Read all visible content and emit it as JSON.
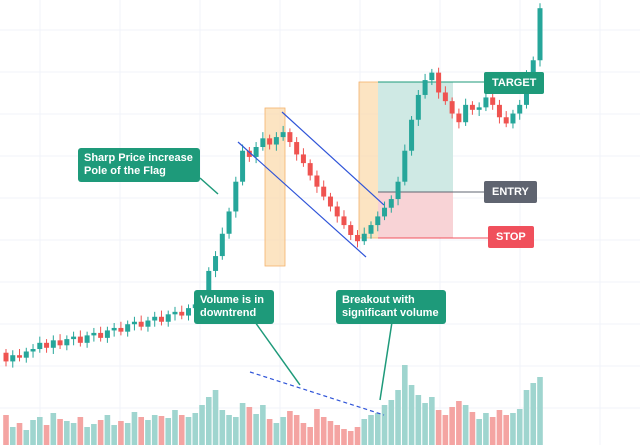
{
  "colors": {
    "up": "#26a69a",
    "down": "#ef5350",
    "up_volume": "#9fd5cf",
    "down_volume": "#f4a4a2",
    "annotation_green": "#1e9a7a",
    "channel_blue": "#2f54d8",
    "flag_highlight": "#fbd8a8",
    "profit_zone": "#cfe9e4",
    "loss_zone": "#f8d3d6",
    "entry_label": "#5f6470",
    "stop_label": "#f0505c",
    "target_label": "#1e9a7a",
    "grid": "#f0f3fa"
  },
  "annotations": {
    "pole": "Sharp Price increase\nPole of the Flag",
    "volume_down": "Volume is in\ndowntrend",
    "breakout": "Breakout with\nsignificant volume"
  },
  "levels": {
    "target": "TARGET",
    "entry": "ENTRY",
    "stop": "STOP"
  },
  "chart_data": {
    "type": "candlestick",
    "description_source": "bull flag pattern with volume",
    "price": {
      "open": [
        62,
        55,
        60,
        58,
        63,
        65,
        70,
        66,
        72,
        68,
        73,
        75,
        70,
        76,
        78,
        74,
        80,
        82,
        79,
        85,
        87,
        83,
        88,
        91,
        87,
        93,
        95,
        92,
        98,
        101,
        105,
        128,
        140,
        158,
        176,
        200,
        225,
        220,
        228,
        235,
        230,
        236,
        240,
        232,
        222,
        215,
        205,
        196,
        188,
        180,
        172,
        165,
        157,
        152,
        158,
        165,
        172,
        179,
        186,
        200,
        225,
        250,
        270,
        282,
        288,
        272,
        265,
        255,
        248,
        262,
        258,
        260,
        268,
        262,
        252,
        247,
        255,
        262,
        285,
        298
      ],
      "close": [
        55,
        60,
        58,
        63,
        65,
        70,
        66,
        72,
        68,
        73,
        75,
        70,
        76,
        78,
        74,
        80,
        82,
        79,
        85,
        87,
        83,
        88,
        91,
        87,
        93,
        95,
        92,
        98,
        101,
        105,
        128,
        140,
        158,
        176,
        200,
        225,
        220,
        228,
        235,
        230,
        236,
        240,
        232,
        222,
        215,
        205,
        196,
        188,
        180,
        172,
        165,
        157,
        152,
        158,
        165,
        172,
        179,
        186,
        200,
        225,
        250,
        270,
        282,
        288,
        272,
        265,
        255,
        248,
        262,
        258,
        260,
        268,
        262,
        252,
        247,
        255,
        262,
        285,
        298,
        340
      ]
    },
    "volume": [
      30,
      18,
      22,
      15,
      25,
      28,
      20,
      32,
      26,
      24,
      22,
      28,
      18,
      21,
      25,
      30,
      20,
      24,
      22,
      33,
      28,
      25,
      30,
      29,
      27,
      35,
      30,
      28,
      32,
      40,
      48,
      55,
      35,
      30,
      28,
      42,
      38,
      31,
      40,
      26,
      22,
      28,
      34,
      30,
      22,
      18,
      36,
      28,
      24,
      20,
      16,
      14,
      18,
      26,
      30,
      32,
      40,
      45,
      55,
      80,
      60,
      50,
      42,
      48,
      35,
      30,
      38,
      44,
      40,
      33,
      26,
      32,
      28,
      35,
      30,
      32,
      36,
      55,
      62,
      68
    ],
    "x_axis": "time (unlabeled)",
    "y_axis": "price (unlabeled)",
    "grid": true,
    "pattern": "bull flag",
    "notes": [
      "Sharp Price increase Pole of the Flag",
      "Volume is in downtrend",
      "Breakout with significant volume"
    ]
  }
}
